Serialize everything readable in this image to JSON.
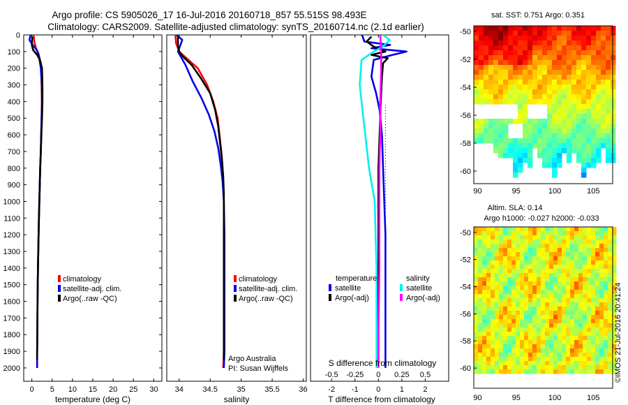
{
  "header": {
    "title_line1": "Argo profile: CS 5905026_17 16-Jul-2016 20160718_857 55.515S 98.493E",
    "title_line2": "Climatology: CARS2009. Satellite-adjusted climatology: synTS_20160714.nc (2.1d earlier)"
  },
  "colors": {
    "climatology": "#ff0000",
    "satellite": "#0000e6",
    "argo": "#000000",
    "salinity_satellite": "#00f0f0",
    "salinity_argo": "#ff00ff"
  },
  "chart_data": [
    {
      "type": "line",
      "name": "temperature",
      "xlabel": "temperature (deg C)",
      "xlim": [
        -2,
        32
      ],
      "xticks": [
        "0",
        "5",
        "10",
        "15",
        "20",
        "25",
        "30"
      ],
      "ylim": [
        2080,
        0
      ],
      "yticks": [
        "0",
        "100",
        "200",
        "300",
        "400",
        "500",
        "600",
        "700",
        "800",
        "900",
        "1000",
        "1100",
        "1200",
        "1300",
        "1400",
        "1500",
        "1600",
        "1700",
        "1800",
        "1900",
        "2000"
      ],
      "legend": [
        "climatology",
        "satellite-adj. clim.",
        "Argo(..raw -QC)"
      ],
      "legend_position": "center-right",
      "series": [
        {
          "name": "climatology",
          "color_key": "climatology",
          "x": [
            0.4,
            0.6,
            1.0,
            1.6,
            2.0,
            2.3,
            2.4,
            2.45,
            2.4,
            2.3,
            2.2,
            2.05,
            1.95,
            1.85,
            1.75,
            1.65,
            1.5,
            1.45,
            1.4,
            1.35,
            1.3,
            1.3
          ],
          "y": [
            0,
            40,
            80,
            110,
            150,
            200,
            300,
            400,
            500,
            600,
            700,
            800,
            900,
            1000,
            1100,
            1200,
            1400,
            1500,
            1600,
            1800,
            1900,
            2000
          ]
        },
        {
          "name": "satellite-adj. clim.",
          "color_key": "satellite",
          "x": [
            -0.3,
            -0.6,
            0.2,
            1.2,
            1.7,
            2.2,
            2.45,
            2.5,
            2.4,
            2.3,
            2.2,
            2.05,
            1.95,
            1.85,
            1.75,
            1.65,
            1.5,
            1.45,
            1.4,
            1.35,
            1.3,
            1.3
          ],
          "y": [
            0,
            30,
            60,
            90,
            120,
            200,
            300,
            400,
            500,
            600,
            700,
            800,
            900,
            1000,
            1100,
            1200,
            1400,
            1500,
            1600,
            1800,
            1900,
            2000
          ]
        },
        {
          "name": "Argo",
          "color_key": "argo",
          "x": [
            0.1,
            0.0,
            0.3,
            1.3,
            2.0,
            2.5,
            2.6,
            2.6,
            2.5,
            2.35,
            2.2,
            2.05,
            1.95,
            1.85,
            1.75,
            1.65,
            1.5,
            1.45,
            1.4,
            1.35,
            1.3
          ],
          "y": [
            10,
            60,
            90,
            120,
            150,
            200,
            300,
            400,
            500,
            600,
            700,
            800,
            900,
            1000,
            1100,
            1200,
            1400,
            1500,
            1600,
            1800,
            1950
          ]
        }
      ]
    },
    {
      "type": "line",
      "name": "salinity",
      "xlabel": "salinity",
      "xlim": [
        33.8,
        36.05
      ],
      "xticks": [
        "34",
        "34.5",
        "35",
        "35.5",
        "36"
      ],
      "ylim": [
        2080,
        0
      ],
      "legend": [
        "climatology",
        "satellite-adj. clim.",
        "Argo(..raw -QC)"
      ],
      "legend_position": "center-right",
      "annotation": [
        "Argo Australia",
        "PI: Susan Wijffels"
      ],
      "series": [
        {
          "name": "climatology",
          "color_key": "climatology",
          "x": [
            33.94,
            33.95,
            34.0,
            34.15,
            34.3,
            34.45,
            34.55,
            34.62,
            34.65,
            34.68,
            34.7,
            34.71,
            34.72,
            34.72,
            34.72,
            34.72,
            34.72,
            34.72,
            34.71
          ],
          "y": [
            0,
            50,
            100,
            150,
            200,
            300,
            400,
            500,
            600,
            700,
            800,
            900,
            1000,
            1200,
            1400,
            1600,
            1800,
            1900,
            2000
          ]
        },
        {
          "name": "satellite-adj. clim.",
          "color_key": "satellite",
          "x": [
            33.96,
            34.05,
            34.02,
            33.98,
            34.1,
            34.22,
            34.36,
            34.48,
            34.57,
            34.63,
            34.67,
            34.7,
            34.72,
            34.73,
            34.73,
            34.73,
            34.73,
            34.73,
            34.72
          ],
          "y": [
            0,
            30,
            60,
            100,
            180,
            280,
            380,
            480,
            580,
            680,
            780,
            880,
            1000,
            1200,
            1400,
            1600,
            1800,
            1900,
            2000
          ]
        },
        {
          "name": "Argo",
          "color_key": "argo",
          "x": [
            33.98,
            33.98,
            34.0,
            34.06,
            34.2,
            34.35,
            34.5,
            34.58,
            34.63,
            34.66,
            34.69,
            34.71,
            34.72,
            34.72,
            34.72,
            34.72,
            34.72
          ],
          "y": [
            10,
            60,
            100,
            130,
            180,
            260,
            350,
            450,
            550,
            650,
            750,
            850,
            950,
            1200,
            1500,
            1800,
            1950
          ]
        }
      ]
    },
    {
      "type": "line",
      "name": "difference from climatology",
      "xlabel": "T difference from climatology",
      "top_xlabel": "S difference from climatology",
      "xlim": [
        -2.9,
        3.0
      ],
      "xticks": [
        "-2",
        "-1",
        "0",
        "1",
        "2"
      ],
      "top_xticks": [
        "-0.5",
        "-0.25",
        "0",
        "0.25",
        "0.5"
      ],
      "ylim": [
        2080,
        0
      ],
      "legend_temperature_title": "temperature",
      "legend_salinity_title": "salinity",
      "legend": [
        "satellite",
        "Argo(-adj)",
        "satellite",
        "Argo(-adj)"
      ],
      "series": [
        {
          "name": "T satellite",
          "color_key": "satellite",
          "x": [
            -0.7,
            -0.6,
            0.5,
            -0.3,
            1.2,
            0.6,
            -0.2,
            -0.3,
            -0.1,
            0.05,
            0.15,
            0.2,
            0.25,
            0.3,
            0.3,
            0.3,
            0.3,
            0.3
          ],
          "y": [
            0,
            40,
            60,
            80,
            100,
            120,
            150,
            250,
            350,
            450,
            600,
            800,
            1000,
            1200,
            1400,
            1600,
            1800,
            2000
          ]
        },
        {
          "name": "T Argo",
          "color_key": "argo",
          "x": [
            -0.3,
            -0.5,
            -0.2,
            0.3,
            -0.3,
            0.4,
            0.2,
            0.15,
            0.1,
            0.05,
            0.0,
            0.0,
            0.0,
            0.0,
            0.0,
            0.0
          ],
          "y": [
            10,
            40,
            70,
            100,
            120,
            140,
            170,
            250,
            400,
            600,
            800,
            1000,
            1200,
            1500,
            1800,
            1950
          ]
        },
        {
          "name": "S satellite",
          "color_key": "salinity_satellite",
          "x": [
            0.05,
            0.12,
            0.05,
            -0.05,
            -0.18,
            -0.2,
            -0.18,
            -0.16,
            -0.14,
            -0.12,
            -0.1,
            -0.07,
            -0.04,
            -0.03,
            -0.02,
            -0.02,
            -0.02,
            -0.02
          ],
          "y": [
            0,
            30,
            70,
            100,
            150,
            300,
            400,
            500,
            600,
            700,
            800,
            900,
            1000,
            1200,
            1400,
            1600,
            1800,
            2000
          ]
        },
        {
          "name": "S Argo",
          "color_key": "salinity_argo",
          "x": [
            0.02,
            0.03,
            0.03,
            0.02,
            0.02,
            0.01,
            0.01,
            0.01,
            0.0,
            0.0
          ],
          "y": [
            0,
            100,
            200,
            400,
            600,
            800,
            1000,
            1400,
            1800,
            2000
          ]
        }
      ]
    },
    {
      "type": "heatmap",
      "name": "sat SST",
      "title": "sat. SST: 0.751 Argo: 0.351",
      "xticks": [
        "90",
        "95",
        "100",
        "105"
      ],
      "yticks": [
        "-50",
        "-52",
        "-54",
        "-56",
        "-58",
        "-60"
      ],
      "xlim": [
        89.5,
        107.5
      ],
      "ylim": [
        -60.9,
        -49.6
      ],
      "colormap": "jet"
    },
    {
      "type": "heatmap",
      "name": "Altim SLA",
      "title_line1": "Altim. SLA: 0.14",
      "title_line2": "Argo h1000: -0.027 h2000: -0.033",
      "xticks": [
        "90",
        "95",
        "100",
        "105"
      ],
      "yticks": [
        "-50",
        "-52",
        "-54",
        "-56",
        "-58",
        "-60"
      ],
      "xlim": [
        89.5,
        107.5
      ],
      "ylim": [
        -60.2,
        -49.6
      ],
      "colormap": "jet",
      "side_label": "©IMOS 21-Jul-2016 20:41:24"
    }
  ]
}
